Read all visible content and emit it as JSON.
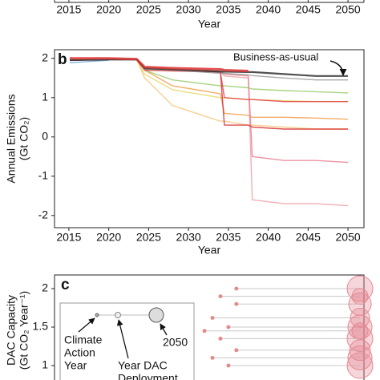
{
  "chart_data": [
    {
      "type": "axis",
      "xlabel": "Year",
      "xlim": [
        2013.2,
        2052
      ],
      "xticks": [
        2015,
        2020,
        2025,
        2030,
        2035,
        2040,
        2045,
        2050
      ]
    },
    {
      "type": "line",
      "panel_label": "b",
      "xlabel": "Year",
      "ylabel": [
        "Annual Emissions",
        "(Gt CO₂)"
      ],
      "xlim": [
        2013.2,
        2052
      ],
      "ylim": [
        -2.31,
        2.22
      ],
      "xticks": [
        2015,
        2020,
        2025,
        2030,
        2035,
        2040,
        2045,
        2050
      ],
      "yticks": [
        -2,
        -1,
        0,
        1,
        2
      ],
      "annotation": "Business-as-usual",
      "x": [
        2014.5,
        2020,
        2023.5,
        2024.5,
        2028,
        2034,
        2034.5,
        2037.5,
        2038,
        2042,
        2046,
        2050
      ],
      "series": [
        {
          "color": "#f5c880",
          "values": [
            1.95,
            1.97,
            1.97,
            1.5,
            0.8,
            0.4,
            0.4,
            0.3,
            0.3,
            0.25,
            0.2,
            0.2
          ]
        },
        {
          "color": "#e8d86a",
          "values": [
            1.95,
            1.97,
            1.97,
            1.6,
            1.2,
            1.0,
            1.0,
            0.95,
            0.95,
            0.92,
            0.9,
            0.9
          ]
        },
        {
          "color": "#9acd6e",
          "values": [
            1.95,
            1.97,
            1.97,
            1.7,
            1.45,
            1.3,
            1.3,
            1.25,
            1.22,
            1.18,
            1.15,
            1.12
          ]
        },
        {
          "color": "#f0a050",
          "values": [
            1.95,
            1.97,
            1.97,
            1.7,
            1.3,
            1.1,
            0.6,
            0.55,
            0.5,
            0.5,
            0.48,
            0.45
          ]
        },
        {
          "color": "#f0a0a8",
          "values": [
            1.95,
            1.97,
            1.97,
            1.72,
            1.7,
            1.66,
            1.55,
            1.5,
            -1.6,
            -1.7,
            -1.7,
            -1.75
          ]
        },
        {
          "color": "#e88090",
          "values": [
            1.95,
            1.97,
            1.97,
            1.72,
            1.7,
            1.66,
            1.6,
            1.55,
            -0.5,
            -0.6,
            -0.6,
            -0.65
          ]
        },
        {
          "color": "#d83030",
          "values": [
            1.95,
            1.97,
            1.97,
            1.72,
            1.7,
            1.66,
            0.3,
            0.3,
            0.25,
            0.2,
            0.2,
            0.2
          ]
        },
        {
          "color": "#e04040",
          "values": [
            1.95,
            1.97,
            1.97,
            1.7,
            1.68,
            1.65,
            1.0,
            0.95,
            0.95,
            0.9,
            0.9,
            0.9
          ]
        },
        {
          "color": "#6fa8dc",
          "values": [
            1.88,
            1.95,
            null,
            null,
            null,
            null,
            null,
            null,
            null,
            null,
            null,
            null
          ]
        },
        {
          "color": "#999999",
          "values": [
            1.95,
            1.97,
            1.97,
            1.72,
            1.7,
            1.62,
            1.62,
            1.58,
            1.56,
            1.5,
            1.45,
            1.45
          ]
        },
        {
          "color": "#333333",
          "values": [
            1.95,
            1.97,
            1.97,
            1.75,
            1.72,
            1.66,
            1.66,
            1.65,
            1.65,
            1.6,
            1.55,
            1.55
          ]
        },
        {
          "color": "#dd3333",
          "values": [
            2.0,
            2.0,
            1.98,
            1.78,
            1.75,
            1.72,
            1.7,
            1.68,
            null,
            null,
            null,
            null
          ]
        }
      ]
    },
    {
      "type": "scatter",
      "panel_label": "c",
      "ylabel": [
        "DAC Capacity",
        "(Gt CO₂ Year⁻¹)"
      ],
      "xlim": [
        2013.2,
        2052
      ],
      "ylim": [
        0.81,
        2.18
      ],
      "yticks": [
        1,
        1.5,
        2
      ],
      "inset_labels": {
        "climate_action_year": [
          "Climate",
          "Action",
          "Year"
        ],
        "year_dac_deployment": [
          "Year DAC",
          "Deployment"
        ],
        "end_year": "2050"
      },
      "start": {
        "color": "#e07070",
        "x": [
          2036,
          2034,
          2036,
          2033,
          2035,
          2032,
          2034,
          2036,
          2033,
          2035
        ],
        "y": [
          2.0,
          1.9,
          1.8,
          1.62,
          1.5,
          1.45,
          1.35,
          1.2,
          1.1,
          1.0
        ]
      },
      "end": {
        "color": "#e58a94",
        "x": [
          2051.5,
          2051.5,
          2051.5,
          2051.5,
          2051.5,
          2051.5,
          2051.5,
          2051.5,
          2051.5,
          2051.5
        ],
        "y": [
          2.0,
          1.9,
          1.8,
          1.62,
          1.5,
          1.45,
          1.35,
          1.2,
          1.1,
          1.0
        ],
        "size": [
          16,
          10,
          14,
          12,
          15,
          10,
          16,
          13,
          15,
          16
        ]
      }
    }
  ]
}
